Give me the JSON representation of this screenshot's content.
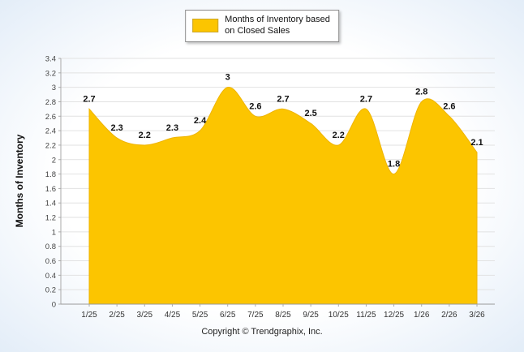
{
  "chart_data": {
    "type": "area",
    "title": "",
    "categories": [
      "1/25",
      "2/25",
      "3/25",
      "4/25",
      "5/25",
      "6/25",
      "7/25",
      "8/25",
      "9/25",
      "10/25",
      "11/25",
      "12/25",
      "1/26",
      "2/26",
      "3/26"
    ],
    "values": [
      2.7,
      2.3,
      2.2,
      2.3,
      2.4,
      3,
      2.6,
      2.7,
      2.5,
      2.2,
      2.7,
      1.8,
      2.8,
      2.6,
      2.1
    ],
    "xlabel": "",
    "ylabel": "Months of Inventory",
    "ylim": [
      0,
      3.4
    ],
    "ytick_step": 0.2,
    "grid": true,
    "legend_entries": [
      "Months of Inventory based on Closed Sales"
    ],
    "legend_position": "top-center",
    "area_color": "#FCC500",
    "area_stroke": "#EFB400",
    "label_color": "#111111",
    "gridline_color": "#e2e2e2",
    "axis_color": "#aaaaaa"
  },
  "legend": {
    "line1": "Months of Inventory based",
    "line2": "on Closed Sales"
  },
  "footer": "Copyright © Trendgraphix, Inc."
}
